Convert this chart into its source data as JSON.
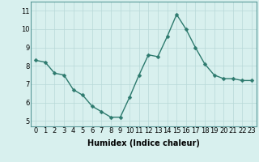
{
  "x": [
    0,
    1,
    2,
    3,
    4,
    5,
    6,
    7,
    8,
    9,
    10,
    11,
    12,
    13,
    14,
    15,
    16,
    17,
    18,
    19,
    20,
    21,
    22,
    23
  ],
  "y": [
    8.3,
    8.2,
    7.6,
    7.5,
    6.7,
    6.4,
    5.8,
    5.5,
    5.2,
    5.2,
    6.3,
    7.5,
    8.6,
    8.5,
    9.6,
    10.8,
    10.0,
    9.0,
    8.1,
    7.5,
    7.3,
    7.3,
    7.2,
    7.2
  ],
  "line_color": "#2d7a6e",
  "marker": "D",
  "marker_size": 2.5,
  "line_width": 1.0,
  "xlabel": "Humidex (Indice chaleur)",
  "xlabel_fontsize": 7,
  "ylim": [
    4.7,
    11.5
  ],
  "xlim": [
    -0.5,
    23.5
  ],
  "yticks": [
    5,
    6,
    7,
    8,
    9,
    10,
    11
  ],
  "xticks": [
    0,
    1,
    2,
    3,
    4,
    5,
    6,
    7,
    8,
    9,
    10,
    11,
    12,
    13,
    14,
    15,
    16,
    17,
    18,
    19,
    20,
    21,
    22,
    23
  ],
  "bg_color": "#d8f0ee",
  "grid_color": "#b8d8d8",
  "tick_fontsize": 6,
  "spine_color": "#5a9a9a"
}
